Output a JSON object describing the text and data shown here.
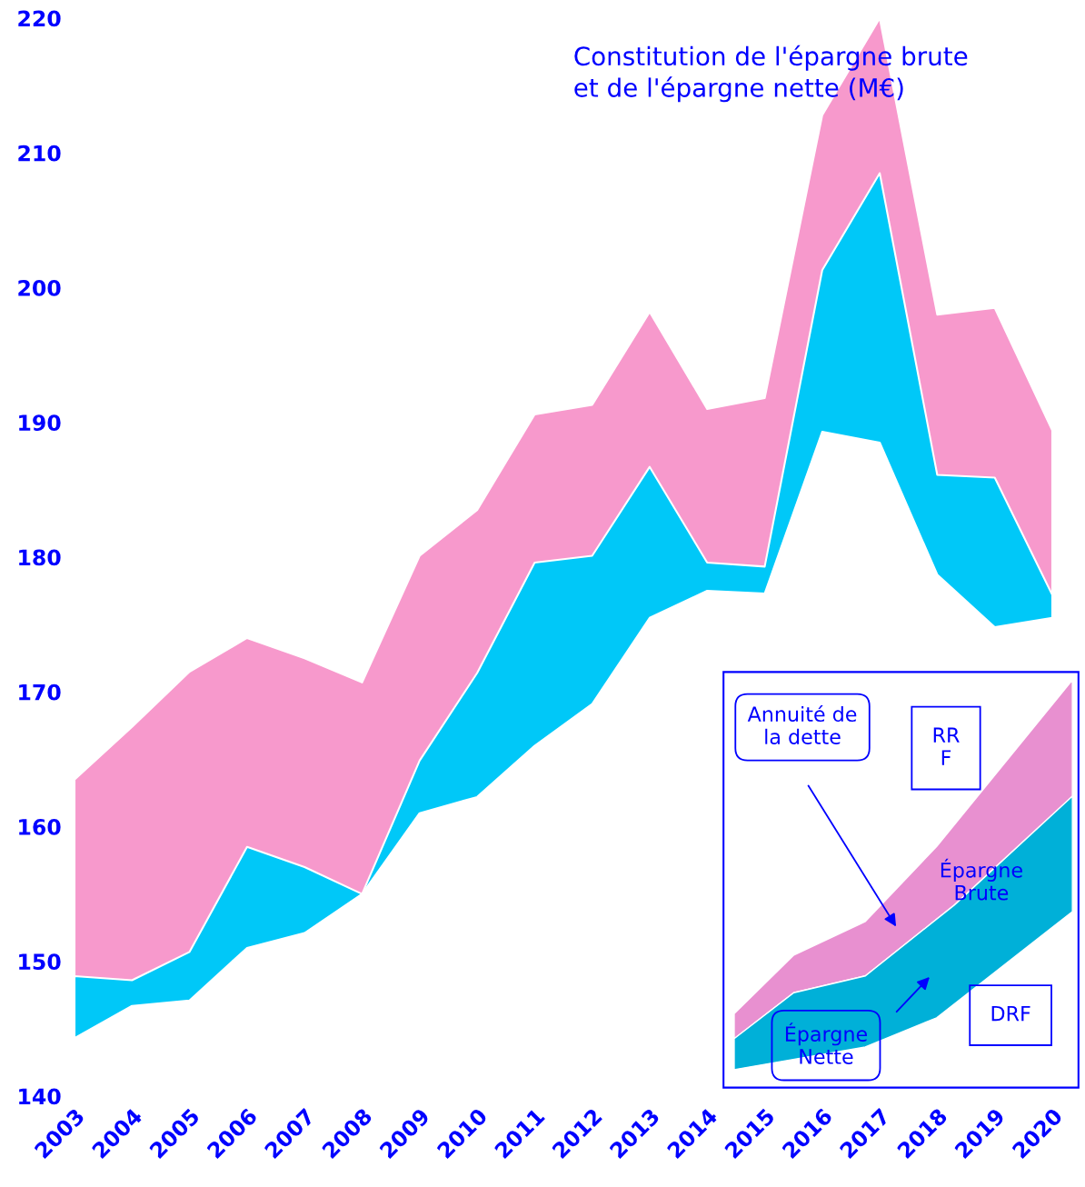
{
  "chart_data": {
    "type": "area",
    "title": "Constitution de l'épargne brute\net de l'épargne nette (M€)",
    "categories": [
      "2003",
      "2004",
      "2005",
      "2006",
      "2007",
      "2008",
      "2009",
      "2010",
      "2011",
      "2012",
      "2013",
      "2014",
      "2015",
      "2016",
      "2017",
      "2018",
      "2019",
      "2020"
    ],
    "series": [
      {
        "color": "#f799cc",
        "values": [
          163.5,
          167.4,
          171.5,
          174.0,
          172.5,
          170.7,
          180.1,
          183.5,
          190.6,
          191.3,
          198.2,
          191.0,
          191.8,
          212.8,
          220,
          198.0,
          198.5,
          189.4
        ]
      },
      {
        "color": "#00c8f8",
        "values": [
          148.9,
          148.6,
          150.7,
          158.5,
          157.0,
          155.0,
          164.9,
          171.4,
          179.6,
          180.1,
          186.7,
          179.6,
          179.3,
          201.3,
          208.5,
          186.1,
          185.9,
          177.2
        ]
      },
      {
        "color": "#ffffff",
        "values": [
          144.3,
          146.7,
          147.1,
          151.0,
          152.1,
          155.0,
          161.0,
          162.2,
          166.0,
          169.1,
          175.5,
          177.5,
          177.3,
          189.3,
          188.5,
          178.7,
          174.8,
          175.5
        ]
      }
    ],
    "ylim": [
      140,
      220
    ],
    "yticks": [
      140,
      150,
      160,
      170,
      180,
      190,
      200,
      210,
      220
    ],
    "annotations": [
      "Annuité de\nla dette",
      "RR\nF",
      "Épargne\nBrute",
      "DRF",
      "Épargne\nNette"
    ]
  }
}
